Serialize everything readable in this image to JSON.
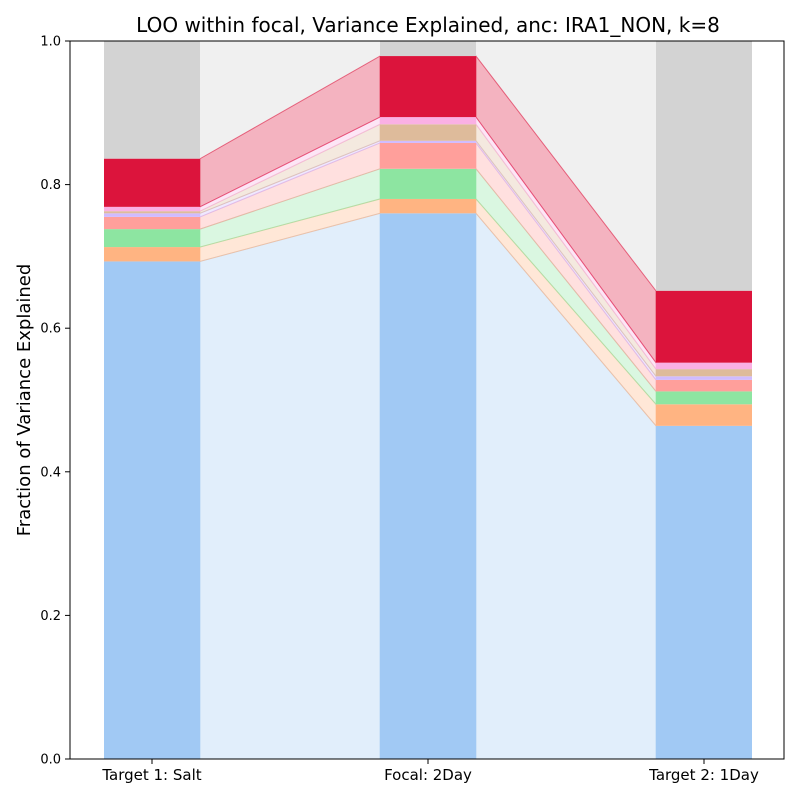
{
  "chart_data": {
    "type": "bar",
    "title": "LOO within focal, Variance Explained, anc: IRA1_NON, k=8",
    "xlabel": "",
    "ylabel": "Fraction of Variance Explained",
    "ylim": [
      0,
      1
    ],
    "yticks": [
      "0.0",
      "0.2",
      "0.4",
      "0.6",
      "0.8",
      "1.0"
    ],
    "categories": [
      "Target 1: Salt",
      "Focal: 2Day",
      "Target 2: 1Day"
    ],
    "stacked": true,
    "connecting_bands": true,
    "background_series_color": "#d3d3d3",
    "series": [
      {
        "color": "#a1c9f4",
        "values": [
          0.693,
          0.76,
          0.464
        ]
      },
      {
        "color": "#ffb482",
        "values": [
          0.02,
          0.02,
          0.03
        ]
      },
      {
        "color": "#8de5a1",
        "values": [
          0.025,
          0.042,
          0.018
        ]
      },
      {
        "color": "#ff9f9b",
        "values": [
          0.017,
          0.036,
          0.016
        ]
      },
      {
        "color": "#d0bbff",
        "values": [
          0.005,
          0.003,
          0.005
        ]
      },
      {
        "color": "#debb9b",
        "values": [
          0.003,
          0.023,
          0.01
        ]
      },
      {
        "color": "#fab0e4",
        "values": [
          0.006,
          0.01,
          0.009
        ]
      },
      {
        "color": "#dc143c",
        "values": [
          0.067,
          0.085,
          0.1
        ]
      }
    ]
  }
}
